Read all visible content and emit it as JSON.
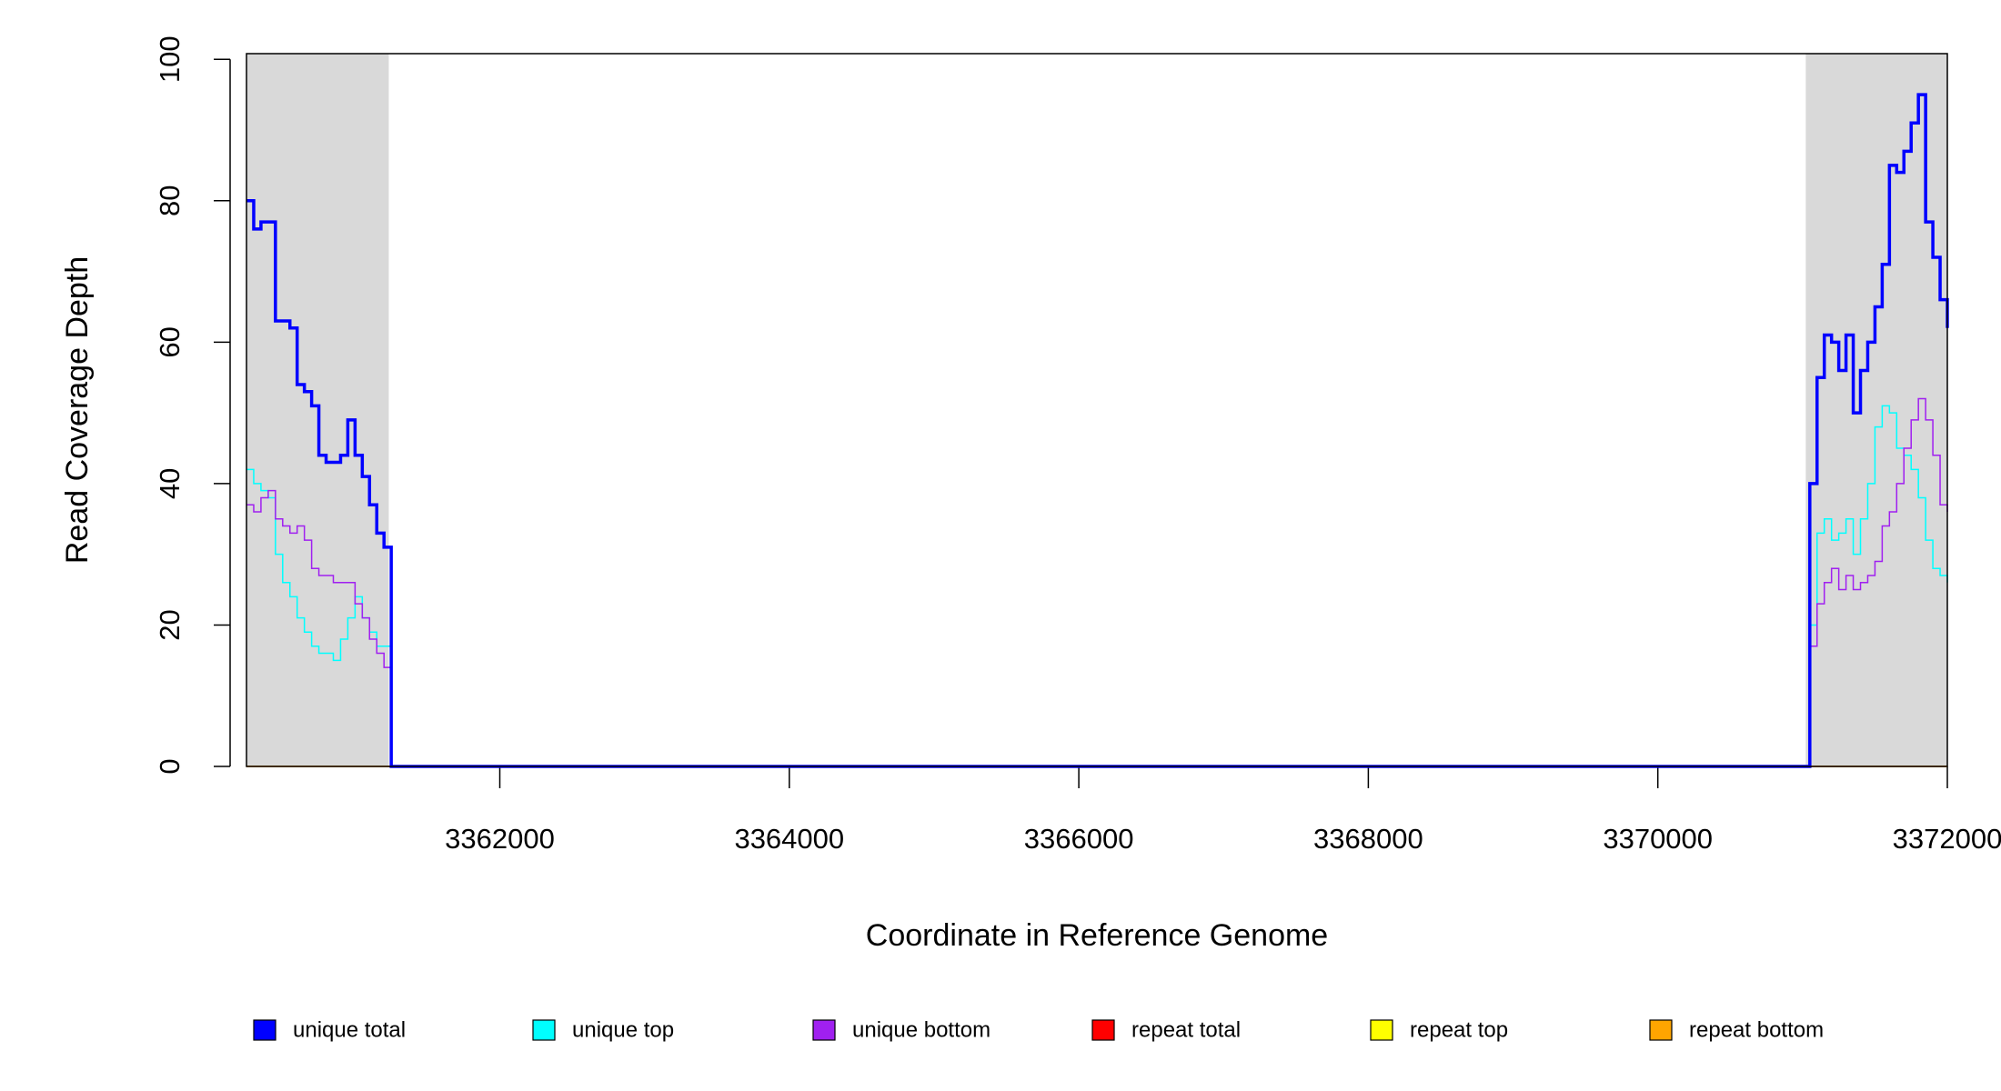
{
  "chart_data": {
    "type": "step",
    "xlabel": "Coordinate in Reference Genome",
    "ylabel": "Read Coverage Depth",
    "xlim": [
      3360250,
      3372000
    ],
    "ylim": [
      0,
      100.8
    ],
    "xticks": [
      3362000,
      3364000,
      3366000,
      3368000,
      3370000,
      3372000
    ],
    "yticks": [
      0,
      20,
      40,
      60,
      80,
      100
    ],
    "highlight_ranges": [
      [
        3360250,
        3361233
      ],
      [
        3371022,
        3372000
      ]
    ],
    "highlight_color": "#d9d9d9",
    "x": [
      3360250,
      3360300,
      3360350,
      3360400,
      3360450,
      3360500,
      3360550,
      3360600,
      3360650,
      3360700,
      3360750,
      3360800,
      3360850,
      3360900,
      3360950,
      3361000,
      3361050,
      3361100,
      3361150,
      3361200,
      3361250,
      3371000,
      3371050,
      3371100,
      3371150,
      3371200,
      3371250,
      3371300,
      3371350,
      3371400,
      3371450,
      3371500,
      3371550,
      3371600,
      3371650,
      3371700,
      3371750,
      3371800,
      3371850,
      3371900,
      3371950,
      3372000
    ],
    "series": [
      {
        "name": "repeat total",
        "color": "#ff0000",
        "width": 1.5,
        "values": [
          0,
          0,
          0,
          0,
          0,
          0,
          0,
          0,
          0,
          0,
          0,
          0,
          0,
          0,
          0,
          0,
          0,
          0,
          0,
          0,
          0,
          0,
          0,
          0,
          0,
          0,
          0,
          0,
          0,
          0,
          0,
          0,
          0,
          0,
          0,
          0,
          0,
          0,
          0,
          0,
          0,
          0
        ]
      },
      {
        "name": "repeat top",
        "color": "#ffff00",
        "width": 1.5,
        "values": [
          0,
          0,
          0,
          0,
          0,
          0,
          0,
          0,
          0,
          0,
          0,
          0,
          0,
          0,
          0,
          0,
          0,
          0,
          0,
          0,
          0,
          0,
          0,
          0,
          0,
          0,
          0,
          0,
          0,
          0,
          0,
          0,
          0,
          0,
          0,
          0,
          0,
          0,
          0,
          0,
          0,
          0
        ]
      },
      {
        "name": "repeat bottom",
        "color": "#ffa500",
        "width": 1.5,
        "values": [
          0,
          0,
          0,
          0,
          0,
          0,
          0,
          0,
          0,
          0,
          0,
          0,
          0,
          0,
          0,
          0,
          0,
          0,
          0,
          0,
          0,
          0,
          0,
          0,
          0,
          0,
          0,
          0,
          0,
          0,
          0,
          0,
          0,
          0,
          0,
          0,
          0,
          0,
          0,
          0,
          0,
          0
        ]
      },
      {
        "name": "unique top",
        "color": "#00ffff",
        "width": 1.5,
        "values": [
          42,
          40,
          39,
          38,
          30,
          26,
          24,
          21,
          19,
          17,
          16,
          16,
          15,
          18,
          21,
          24,
          21,
          19,
          17,
          17,
          0,
          0,
          20,
          33,
          35,
          32,
          33,
          35,
          30,
          35,
          40,
          48,
          51,
          50,
          45,
          44,
          42,
          38,
          32,
          28,
          27,
          26
        ]
      },
      {
        "name": "unique bottom",
        "color": "#a020f0",
        "width": 1.5,
        "values": [
          37,
          36,
          38,
          39,
          35,
          34,
          33,
          34,
          32,
          28,
          27,
          27,
          26,
          26,
          26,
          23,
          21,
          18,
          16,
          14,
          0,
          0,
          17,
          23,
          26,
          28,
          25,
          27,
          25,
          26,
          27,
          29,
          34,
          36,
          40,
          45,
          49,
          52,
          49,
          44,
          37,
          36
        ]
      },
      {
        "name": "unique total",
        "color": "#0000ff",
        "width": 3.5,
        "values": [
          80,
          76,
          77,
          77,
          63,
          63,
          62,
          54,
          53,
          51,
          44,
          43,
          43,
          44,
          49,
          44,
          41,
          37,
          33,
          31,
          0,
          0,
          40,
          55,
          61,
          60,
          56,
          61,
          50,
          56,
          60,
          65,
          71,
          85,
          84,
          87,
          91,
          95,
          77,
          72,
          66,
          62
        ]
      }
    ],
    "legend": [
      "unique total",
      "unique top",
      "unique bottom",
      "repeat total",
      "repeat top",
      "repeat bottom"
    ]
  }
}
